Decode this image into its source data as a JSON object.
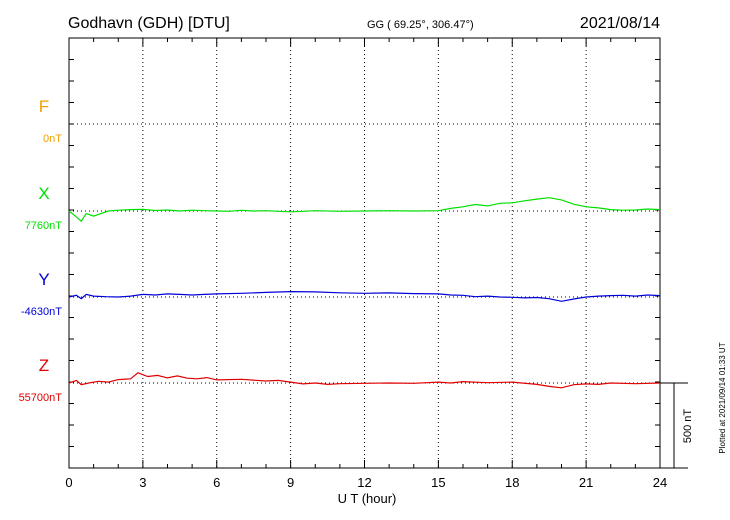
{
  "chart_data": {
    "type": "line",
    "title": "Godhavn (GDH)  [DTU]",
    "subtitle": "GG ( 69.25°, 306.47°)",
    "date": "2021/08/14",
    "xlabel": "U T (hour)",
    "xlim": [
      0,
      24
    ],
    "xticks": [
      "0",
      "3",
      "6",
      "9",
      "12",
      "15",
      "18",
      "21",
      "24"
    ],
    "scale_bar_label": "500 nT",
    "plotted_note": "Plotted at 2021/09/14 01:33 UT",
    "grid": true,
    "series": [
      {
        "name": "F",
        "baseline": "0nT",
        "color": "#f0a000",
        "x": [],
        "values": []
      },
      {
        "name": "X",
        "baseline": "7760nT",
        "color": "#00e000",
        "x": [
          0,
          0.3,
          0.5,
          0.7,
          1,
          1.3,
          1.6,
          2,
          2.5,
          3,
          3.5,
          4,
          4.5,
          5,
          5.5,
          6,
          6.5,
          7,
          7.5,
          8,
          8.5,
          9,
          9.5,
          10,
          11,
          12,
          13,
          14,
          15,
          15.5,
          16,
          16.5,
          17,
          17.5,
          18,
          18.5,
          19,
          19.5,
          20,
          20.5,
          21,
          21.5,
          22,
          22.5,
          23,
          23.5,
          24
        ],
        "values": [
          7760,
          7725,
          7700,
          7745,
          7730,
          7745,
          7760,
          7765,
          7768,
          7770,
          7763,
          7766,
          7760,
          7765,
          7762,
          7760,
          7758,
          7764,
          7760,
          7762,
          7758,
          7755,
          7758,
          7762,
          7758,
          7760,
          7762,
          7760,
          7762,
          7775,
          7785,
          7798,
          7790,
          7805,
          7808,
          7820,
          7830,
          7838,
          7825,
          7800,
          7785,
          7778,
          7768,
          7765,
          7766,
          7772,
          7768
        ]
      },
      {
        "name": "Y",
        "baseline": "-4630nT",
        "color": "#0000d8",
        "x": [
          0,
          0.3,
          0.5,
          0.7,
          1,
          1.5,
          2,
          2.5,
          3,
          3.5,
          4,
          4.5,
          5,
          5.5,
          6,
          7,
          8,
          9,
          10,
          11,
          12,
          13,
          14,
          15,
          15.5,
          16,
          16.5,
          17,
          17.5,
          18,
          18.5,
          19,
          19.5,
          20,
          20.5,
          21,
          21.5,
          22,
          22.5,
          23,
          23.5,
          24
        ],
        "values": [
          -4630,
          -4620,
          -4640,
          -4615,
          -4625,
          -4628,
          -4630,
          -4625,
          -4615,
          -4618,
          -4612,
          -4615,
          -4618,
          -4615,
          -4612,
          -4608,
          -4603,
          -4598,
          -4600,
          -4605,
          -4608,
          -4606,
          -4610,
          -4612,
          -4618,
          -4620,
          -4628,
          -4625,
          -4630,
          -4632,
          -4635,
          -4633,
          -4640,
          -4655,
          -4642,
          -4630,
          -4625,
          -4622,
          -4620,
          -4625,
          -4618,
          -4622
        ]
      },
      {
        "name": "Z",
        "baseline": "55700nT",
        "color": "#e00000",
        "x": [
          0,
          0.3,
          0.5,
          0.8,
          1.2,
          1.6,
          2,
          2.5,
          2.8,
          3.2,
          3.6,
          4,
          4.4,
          4.8,
          5.2,
          5.6,
          6,
          7,
          8,
          8.5,
          9,
          9.5,
          10,
          10.5,
          11,
          12,
          13,
          14,
          15,
          15.5,
          16,
          17,
          18,
          19,
          19.5,
          20,
          20.5,
          21,
          21.5,
          22,
          23,
          24
        ],
        "values": [
          55700,
          55715,
          55690,
          55700,
          55710,
          55705,
          55720,
          55725,
          55760,
          55738,
          55745,
          55730,
          55742,
          55728,
          55725,
          55732,
          55718,
          55722,
          55712,
          55715,
          55705,
          55695,
          55700,
          55692,
          55696,
          55698,
          55700,
          55698,
          55705,
          55700,
          55708,
          55702,
          55705,
          55692,
          55680,
          55672,
          55690,
          55695,
          55692,
          55700,
          55696,
          55700
        ]
      }
    ]
  }
}
